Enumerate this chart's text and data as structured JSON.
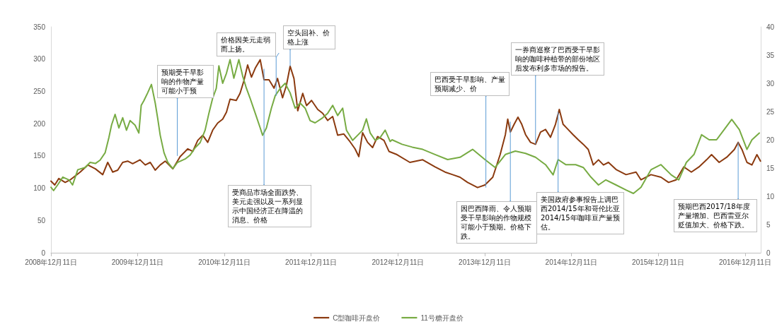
{
  "chart_data": {
    "type": "line",
    "xlim": [
      "2008-12-11",
      "2017-02-15"
    ],
    "xticks": [
      {
        "value": "2008-12-11",
        "label": "2008年12月11日"
      },
      {
        "value": "2009-12-11",
        "label": "2009年12月11日"
      },
      {
        "value": "2010-12-11",
        "label": "2010年12月11日"
      },
      {
        "value": "2011-12-11",
        "label": "2011年12月11日"
      },
      {
        "value": "2012-12-11",
        "label": "2012年12月11日"
      },
      {
        "value": "2013-12-11",
        "label": "2013年12月11日"
      },
      {
        "value": "2014-12-11",
        "label": "2014年12月11日"
      },
      {
        "value": "2015-12-11",
        "label": "2015年12月11日"
      },
      {
        "value": "2016-12-11",
        "label": "2016年12月11日"
      }
    ],
    "ylim": [
      0,
      350
    ],
    "yticks": [
      0,
      50,
      100,
      150,
      200,
      250,
      300,
      350
    ],
    "y2lim": [
      0,
      40
    ],
    "y2ticks": [
      0,
      5,
      10,
      15,
      20,
      25,
      30,
      35,
      40
    ],
    "grid": false,
    "legend": "bottom",
    "marker": "none",
    "line_style": "solid",
    "series": [
      {
        "name": "C型咖啡开盘价",
        "color": "#8b3a0f",
        "x": [
          "2008-12-11",
          "2008-12-27",
          "2009-01-13",
          "2009-02-09",
          "2009-03-02",
          "2009-03-23",
          "2009-04-13",
          "2009-05-15",
          "2009-06-16",
          "2009-07-17",
          "2009-08-07",
          "2009-08-28",
          "2009-09-18",
          "2009-10-09",
          "2009-10-30",
          "2009-11-20",
          "2009-12-21",
          "2010-01-12",
          "2010-02-02",
          "2010-02-23",
          "2010-03-16",
          "2010-04-06",
          "2010-05-08",
          "2010-06-08",
          "2010-07-10",
          "2010-07-31",
          "2010-08-21",
          "2010-09-11",
          "2010-10-02",
          "2010-10-23",
          "2010-11-13",
          "2010-12-04",
          "2010-12-20",
          "2011-01-04",
          "2011-01-30",
          "2011-02-15",
          "2011-03-03",
          "2011-03-19",
          "2011-04-04",
          "2011-04-20",
          "2011-05-11",
          "2011-05-27",
          "2011-06-17",
          "2011-07-08",
          "2011-07-23",
          "2011-08-13",
          "2011-08-29",
          "2011-09-14",
          "2011-09-30",
          "2011-10-16",
          "2011-11-06",
          "2011-11-22",
          "2011-12-13",
          "2012-01-08",
          "2012-01-29",
          "2012-02-19",
          "2012-03-11",
          "2012-04-01",
          "2012-04-27",
          "2012-05-23",
          "2012-06-13",
          "2012-06-29",
          "2012-07-15",
          "2012-08-05",
          "2012-08-26",
          "2012-09-16",
          "2012-10-13",
          "2012-11-03",
          "2012-12-07",
          "2013-01-30",
          "2013-03-25",
          "2013-05-16",
          "2013-06-27",
          "2013-07-29",
          "2013-08-29",
          "2013-09-30",
          "2013-11-11",
          "2013-12-12",
          "2014-01-14",
          "2014-02-14",
          "2014-03-08",
          "2014-03-18",
          "2014-03-29",
          "2014-04-14",
          "2014-04-30",
          "2014-05-16",
          "2014-06-01",
          "2014-06-22",
          "2014-07-13",
          "2014-08-03",
          "2014-08-24",
          "2014-09-14",
          "2014-10-05",
          "2014-10-21",
          "2014-11-06",
          "2014-11-27",
          "2014-12-18",
          "2015-01-09",
          "2015-01-30",
          "2015-02-20",
          "2015-03-13",
          "2015-04-04",
          "2015-04-25",
          "2015-05-16",
          "2015-06-17",
          "2015-07-29",
          "2015-09-09",
          "2015-09-30",
          "2015-11-11",
          "2015-12-23",
          "2016-01-24",
          "2016-02-25",
          "2016-03-28",
          "2016-04-29",
          "2016-05-31",
          "2016-07-02",
          "2016-07-23",
          "2016-08-24",
          "2016-09-25",
          "2016-10-27",
          "2016-11-12",
          "2016-11-28",
          "2016-12-19",
          "2017-01-09",
          "2017-01-30",
          "2017-02-14"
        ],
        "values": [
          111,
          105,
          115,
          109,
          113,
          119,
          125,
          136,
          130,
          121,
          140,
          125,
          128,
          140,
          142,
          138,
          144,
          136,
          140,
          128,
          136,
          142,
          130,
          149,
          161,
          157,
          174,
          182,
          171,
          190,
          201,
          207,
          218,
          238,
          236,
          247,
          266,
          291,
          272,
          286,
          299,
          268,
          268,
          255,
          270,
          240,
          259,
          289,
          270,
          220,
          247,
          228,
          236,
          222,
          216,
          205,
          211,
          182,
          184,
          172,
          161,
          149,
          186,
          171,
          163,
          180,
          174,
          157,
          152,
          140,
          144,
          133,
          125,
          121,
          117,
          109,
          101,
          105,
          117,
          152,
          183,
          207,
          187,
          199,
          210,
          199,
          183,
          171,
          168,
          187,
          191,
          179,
          199,
          222,
          199,
          191,
          183,
          175,
          168,
          160,
          136,
          144,
          136,
          140,
          129,
          121,
          125,
          113,
          121,
          117,
          109,
          113,
          133,
          125,
          133,
          144,
          152,
          140,
          148,
          160,
          171,
          160,
          140,
          136,
          152,
          142
        ]
      },
      {
        "name": "11号糖开盘价",
        "color": "#77ab43",
        "axis": "y2",
        "x": [
          "2008-12-11",
          "2008-12-22",
          "2009-01-08",
          "2009-01-30",
          "2009-02-25",
          "2009-03-12",
          "2009-04-03",
          "2009-05-04",
          "2009-05-25",
          "2009-06-16",
          "2009-07-06",
          "2009-07-27",
          "2009-08-12",
          "2009-08-23",
          "2009-09-07",
          "2009-09-23",
          "2009-10-09",
          "2009-10-25",
          "2009-11-09",
          "2009-11-30",
          "2009-12-16",
          "2009-12-26",
          "2010-01-06",
          "2010-01-22",
          "2010-02-07",
          "2010-02-23",
          "2010-03-05",
          "2010-03-16",
          "2010-04-01",
          "2010-04-17",
          "2010-05-08",
          "2010-05-28",
          "2010-06-29",
          "2010-07-20",
          "2010-08-10",
          "2010-08-31",
          "2010-09-21",
          "2010-10-07",
          "2010-10-23",
          "2010-11-07",
          "2010-11-18",
          "2010-12-04",
          "2010-12-20",
          "2011-01-04",
          "2011-01-20",
          "2011-02-10",
          "2011-02-26",
          "2011-03-14",
          "2011-03-29",
          "2011-04-20",
          "2011-05-11",
          "2011-05-21",
          "2011-06-06",
          "2011-06-27",
          "2011-07-13",
          "2011-08-03",
          "2011-08-24",
          "2011-09-14",
          "2011-10-05",
          "2011-10-26",
          "2011-11-16",
          "2011-12-07",
          "2011-12-28",
          "2012-01-29",
          "2012-02-19",
          "2012-03-11",
          "2012-04-01",
          "2012-04-22",
          "2012-05-08",
          "2012-06-03",
          "2012-06-24",
          "2012-07-15",
          "2012-07-31",
          "2012-08-16",
          "2012-09-06",
          "2012-09-27",
          "2012-10-18",
          "2012-11-08",
          "2012-11-16",
          "2012-12-28",
          "2013-02-09",
          "2013-03-25",
          "2013-05-16",
          "2013-07-08",
          "2013-08-29",
          "2013-10-21",
          "2013-12-12",
          "2014-01-24",
          "2014-03-08",
          "2014-04-19",
          "2014-06-01",
          "2014-07-13",
          "2014-08-24",
          "2014-09-25",
          "2014-10-16",
          "2014-11-17",
          "2014-12-29",
          "2015-01-30",
          "2015-03-03",
          "2015-04-04",
          "2015-05-05",
          "2015-06-17",
          "2015-07-29",
          "2015-08-29",
          "2015-09-30",
          "2015-11-11",
          "2015-12-23",
          "2016-02-04",
          "2016-03-07",
          "2016-04-08",
          "2016-05-10",
          "2016-06-11",
          "2016-07-13",
          "2016-08-13",
          "2016-09-14",
          "2016-10-16",
          "2016-11-17",
          "2016-12-19",
          "2017-01-09",
          "2017-02-09"
        ],
        "values": [
          11.6,
          11.0,
          12.0,
          13.4,
          12.9,
          12.0,
          14.7,
          15.1,
          16.0,
          15.8,
          16.4,
          17.7,
          20.4,
          22.6,
          24.5,
          22.1,
          23.9,
          21.7,
          23.4,
          22.6,
          21.2,
          26.1,
          26.9,
          28.3,
          29.8,
          26.5,
          23.9,
          20.8,
          17.7,
          16.0,
          14.9,
          16.0,
          16.6,
          17.3,
          18.6,
          19.5,
          21.7,
          24.7,
          27.4,
          29.1,
          33.1,
          30.0,
          31.8,
          34.2,
          30.9,
          34.2,
          31.3,
          29.1,
          27.4,
          24.7,
          22.1,
          20.8,
          22.1,
          25.6,
          27.8,
          29.1,
          30.0,
          28.3,
          25.6,
          26.5,
          25.6,
          23.4,
          23.0,
          23.9,
          24.7,
          26.1,
          24.3,
          25.6,
          21.7,
          19.9,
          20.8,
          21.7,
          23.7,
          21.2,
          19.9,
          20.4,
          21.7,
          19.7,
          20.0,
          19.2,
          18.7,
          18.3,
          17.4,
          16.5,
          16.9,
          18.3,
          16.5,
          15.1,
          17.4,
          18.0,
          17.6,
          16.9,
          15.6,
          13.8,
          16.5,
          15.6,
          15.6,
          15.1,
          13.4,
          12.0,
          12.9,
          12.0,
          11.1,
          10.5,
          11.6,
          14.7,
          15.6,
          13.8,
          12.9,
          16.0,
          17.4,
          20.9,
          20.0,
          20.0,
          21.8,
          23.6,
          21.8,
          18.3,
          20.0,
          21.2
        ]
      }
    ],
    "annotations": [
      {
        "text": "预期受干旱影响的作物产量可能小于预",
        "x": "2010-05-27",
        "y": 150
      },
      {
        "text": "价格因美元走弱而上扬。",
        "x": "2011-07-17",
        "y": 243
      },
      {
        "text": "空头回补、价格上涨",
        "x": "2011-09-14",
        "y": 289
      },
      {
        "text": "受商品市场全面跌势、美元走强以及一系列显示中国经济正在降温的消息、价格",
        "x": "2011-05-27",
        "y": 285
      },
      {
        "text": "巴西受干旱影响、产量预期减少、价",
        "x": "2013-12-16",
        "y": 101
      },
      {
        "text": "一券商巡察了巴西受干旱影响的咖啡种植带的部份地区后发布利多市场的报告。",
        "x": "2014-07-13",
        "y": 168
      },
      {
        "text": "因巴西降雨、令人预期受干旱影响的作物规模可能小于预期。价格下跌。",
        "x": "2014-03-29",
        "y": 203
      },
      {
        "text": "美国政府参事报告上调巴西2014/15年和哥伦比亚2014/15年咖啡豆产量预估。",
        "x": "2014-10-16",
        "y": 218
      },
      {
        "text": "预期巴西2017/18年度产量增加、巴西雷亚尔贬值加大、价格下跌。",
        "x": "2016-11-12",
        "y": 171
      }
    ]
  }
}
